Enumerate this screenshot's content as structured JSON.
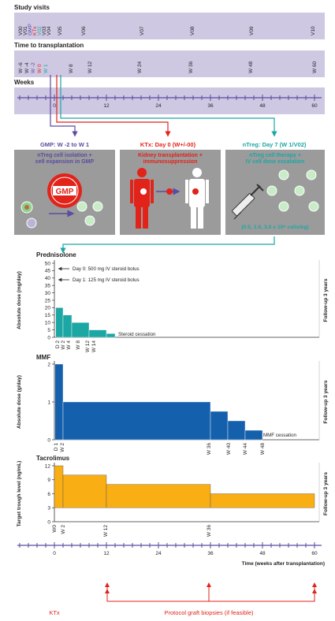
{
  "study_visits": {
    "title": "Study visits",
    "labels": [
      "V00",
      "V01",
      "GMP",
      "KTx",
      "V02",
      "V03",
      "V04",
      "V05",
      "V06",
      "V07",
      "V08",
      "V09",
      "V10"
    ]
  },
  "time_to_tx": {
    "title": "Time to transplantation",
    "labels": [
      "W -6",
      "W -4",
      "W -2",
      "W 0",
      "W 1",
      "W 8",
      "W 12",
      "W 24",
      "W 36",
      "W 48",
      "W 60"
    ]
  },
  "weeks_axis": {
    "title": "Weeks",
    "ticks": [
      "0",
      "12",
      "24",
      "36",
      "48",
      "60"
    ]
  },
  "panels": {
    "gmp": {
      "header": "GMP: W -2 to W 1",
      "title": "nTreg cell isolation + cell expansion in GMP",
      "stamp": "GMP",
      "stamp_ring": "GOOD MANUFACTURING PRACTICE"
    },
    "ktx": {
      "header": "KTx: Day 0 (W+/-00)",
      "title": "Kidney transplantation + immunosuppression"
    },
    "ntreg": {
      "header": "nTreg: Day 7 (W 1/V02)",
      "title": "nTreg cell therapy + IV cell dose escalation",
      "doses": "(0.5, 1.0, 3.0 x 10⁶ cells/kg)"
    }
  },
  "colors": {
    "lavender": "#cfc8e3",
    "purple": "#5a4c9f",
    "red": "#e2231a",
    "teal": "#1ca7a4",
    "grey": "#9b9b9b",
    "blue": "#1560ad",
    "orange": "#f9ae14"
  },
  "chart_data": [
    {
      "type": "area",
      "title": "Prednisolone",
      "ylabel": "Absolute dose (mg/day)",
      "yticks": [
        "0",
        "5",
        "10",
        "15",
        "20",
        "25",
        "30",
        "35",
        "40",
        "45",
        "50"
      ],
      "ylim": [
        0,
        50
      ],
      "xticks": [
        "D 2",
        "W 2",
        "W 4",
        "W 8",
        "W 12",
        "W 14"
      ],
      "steps": [
        {
          "x0": 0.3,
          "x1": 2,
          "y": 20
        },
        {
          "x0": 2,
          "x1": 4,
          "y": 15
        },
        {
          "x0": 4,
          "x1": 8,
          "y": 10
        },
        {
          "x0": 8,
          "x1": 12,
          "y": 5
        },
        {
          "x0": 12,
          "x1": 14,
          "y": 2.5
        }
      ],
      "annotations": [
        "Day 0: 500 mg IV steroid bolus",
        "Day 1: 125 mg IV steroid bolus",
        "Steroid cessation"
      ],
      "side_label": "Follow-up 3 years"
    },
    {
      "type": "area",
      "title": "MMF",
      "ylabel": "Absolute dose (g/day)",
      "yticks": [
        "0",
        "1",
        "2"
      ],
      "ylim": [
        0,
        2
      ],
      "xticks": [
        "D 1",
        "W 2",
        "W 36",
        "W 40",
        "W 44",
        "W 48"
      ],
      "steps": [
        {
          "x0": 0.15,
          "x1": 2,
          "y": 2
        },
        {
          "x0": 2,
          "x1": 36,
          "y": 1
        },
        {
          "x0": 36,
          "x1": 40,
          "y": 0.75
        },
        {
          "x0": 40,
          "x1": 44,
          "y": 0.5
        },
        {
          "x0": 44,
          "x1": 48,
          "y": 0.25
        }
      ],
      "annotations": [
        "MMF cessation"
      ],
      "side_label": "Follow-up 3 years"
    },
    {
      "type": "area",
      "title": "Tacrolimus",
      "ylabel": "Target trough level (ng/mL)",
      "yticks": [
        "0",
        "3",
        "6",
        "9",
        "12"
      ],
      "ylim": [
        0,
        12
      ],
      "xticks": [
        "W0",
        "W 2",
        "W 12",
        "W 36"
      ],
      "bands": [
        {
          "x0": 0,
          "x1": 2,
          "lo": 3,
          "hi": 12
        },
        {
          "x0": 2,
          "x1": 12,
          "lo": 3,
          "hi": 10
        },
        {
          "x0": 12,
          "x1": 36,
          "lo": 3,
          "hi": 8
        },
        {
          "x0": 36,
          "x1": 60,
          "lo": 3,
          "hi": 6
        }
      ],
      "side_label": "Follow-up 3 years"
    }
  ],
  "bottom_axis": {
    "ticks": [
      "0",
      "12",
      "24",
      "36",
      "48",
      "60"
    ],
    "xlabel": "Time (weeks after transplantation)"
  },
  "footer": {
    "ktx": "KTx",
    "biopsies": "Protocol graft biopsies (if feasible)"
  }
}
